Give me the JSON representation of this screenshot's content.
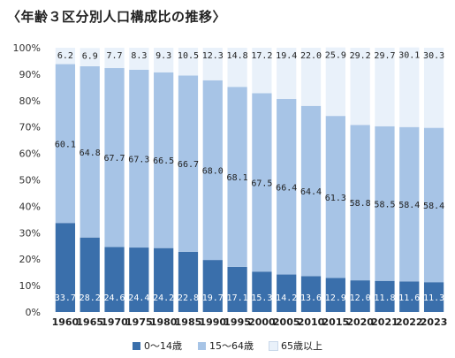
{
  "chart_data": {
    "type": "bar",
    "stacked": true,
    "title": "〈年齢３区分別人口構成比の推移〉",
    "xlabel": "",
    "ylabel": "",
    "ylim": [
      0,
      100
    ],
    "y_ticks": [
      "0%",
      "10%",
      "20%",
      "30%",
      "40%",
      "50%",
      "60%",
      "70%",
      "80%",
      "90%",
      "100%"
    ],
    "grid": false,
    "legend_position": "bottom",
    "categories": [
      "1960",
      "1965",
      "1970",
      "1975",
      "1980",
      "1985",
      "1990",
      "1995",
      "2000",
      "2005",
      "2010",
      "2015",
      "2020",
      "2021",
      "2022",
      "2023"
    ],
    "series": [
      {
        "name": "0～14歳",
        "color": "#3a6fab",
        "label_color": "#ffffff",
        "values": [
          33.7,
          28.2,
          24.6,
          24.4,
          24.2,
          22.8,
          19.7,
          17.1,
          15.3,
          14.2,
          13.6,
          12.9,
          12.0,
          11.8,
          11.6,
          11.3
        ]
      },
      {
        "name": "15～64歳",
        "color": "#a7c4e6",
        "label_color": "#222222",
        "values": [
          60.1,
          64.8,
          67.7,
          67.3,
          66.5,
          66.7,
          68.0,
          68.1,
          67.5,
          66.4,
          64.4,
          61.3,
          58.8,
          58.5,
          58.4,
          58.4
        ]
      },
      {
        "name": "65歳以上",
        "color": "#e9f1fa",
        "label_color": "#222222",
        "values": [
          6.2,
          6.9,
          7.7,
          8.3,
          9.3,
          10.5,
          12.3,
          14.8,
          17.2,
          19.4,
          22.0,
          25.9,
          29.2,
          29.7,
          30.1,
          30.3
        ]
      }
    ]
  }
}
